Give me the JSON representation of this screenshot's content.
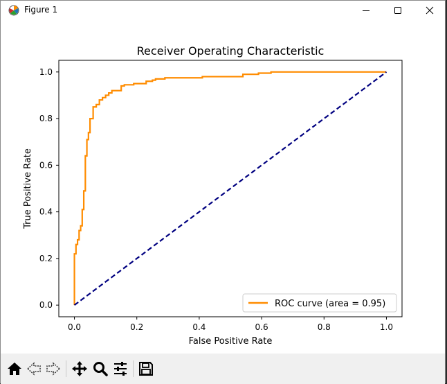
{
  "window": {
    "title": "Figure 1"
  },
  "toolbar": {
    "tools": [
      "home-icon",
      "back-icon",
      "forward-icon",
      "pan-icon",
      "zoom-icon",
      "configure-subplots-icon",
      "save-icon"
    ]
  },
  "colors": {
    "roc": "#ff8c00",
    "diagonal": "#000080",
    "axes": "#000000"
  },
  "chart_data": {
    "type": "line",
    "title": "Receiver Operating Characteristic",
    "xlabel": "False Positive Rate",
    "ylabel": "True Positive Rate",
    "xlim": [
      -0.05,
      1.05
    ],
    "ylim": [
      -0.05,
      1.05
    ],
    "xticks": [
      "0.0",
      "0.2",
      "0.4",
      "0.6",
      "0.8",
      "1.0"
    ],
    "yticks": [
      "0.0",
      "0.2",
      "0.4",
      "0.6",
      "0.8",
      "1.0"
    ],
    "grid": false,
    "legend_position": "lower right",
    "series": [
      {
        "name": "ROC curve (area = 0.95)",
        "color": "#ff8c00",
        "linestyle": "solid",
        "x": [
          0.0,
          0.0,
          0.005,
          0.005,
          0.01,
          0.01,
          0.015,
          0.015,
          0.02,
          0.02,
          0.025,
          0.025,
          0.03,
          0.03,
          0.035,
          0.035,
          0.04,
          0.04,
          0.045,
          0.045,
          0.05,
          0.05,
          0.06,
          0.06,
          0.07,
          0.07,
          0.08,
          0.08,
          0.09,
          0.09,
          0.1,
          0.1,
          0.11,
          0.11,
          0.12,
          0.12,
          0.15,
          0.15,
          0.16,
          0.16,
          0.19,
          0.19,
          0.23,
          0.23,
          0.25,
          0.25,
          0.26,
          0.26,
          0.29,
          0.29,
          0.41,
          0.41,
          0.54,
          0.54,
          0.59,
          0.59,
          0.63,
          0.63,
          1.0
        ],
        "y": [
          0.0,
          0.22,
          0.22,
          0.26,
          0.26,
          0.28,
          0.28,
          0.32,
          0.32,
          0.34,
          0.34,
          0.41,
          0.41,
          0.49,
          0.49,
          0.64,
          0.64,
          0.71,
          0.71,
          0.74,
          0.74,
          0.8,
          0.8,
          0.85,
          0.85,
          0.86,
          0.86,
          0.88,
          0.88,
          0.89,
          0.89,
          0.9,
          0.9,
          0.91,
          0.91,
          0.92,
          0.92,
          0.94,
          0.94,
          0.945,
          0.945,
          0.95,
          0.95,
          0.96,
          0.96,
          0.965,
          0.965,
          0.97,
          0.97,
          0.975,
          0.975,
          0.98,
          0.98,
          0.99,
          0.99,
          0.995,
          0.995,
          1.0,
          1.0
        ]
      },
      {
        "color": "#000080",
        "linestyle": "dashed",
        "x": [
          0.0,
          1.0
        ],
        "y": [
          0.0,
          1.0
        ]
      }
    ]
  }
}
